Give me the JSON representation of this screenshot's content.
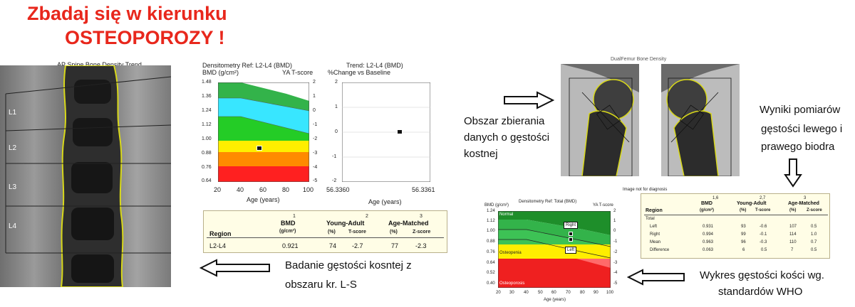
{
  "headline": {
    "line1": "Zbadaj się w kierunku",
    "line2": "OSTEOPOROZY !"
  },
  "spine_scan": {
    "title": "AP Spine Bone Density Trend",
    "labels": [
      "L1",
      "L2",
      "L3",
      "L4"
    ]
  },
  "spine_bmd_chart": {
    "title": "Densitometry Ref: L2-L4 (BMD)",
    "y_left_label": "BMD (g/cm²)",
    "y_right_label": "YA T-score",
    "x_label": "Age (years)",
    "y_ticks": [
      "1.48",
      "1.36",
      "1.24",
      "1.12",
      "1.00",
      "0.88",
      "0.76",
      "0.64"
    ],
    "t_ticks": [
      "2",
      "1",
      "0",
      "-1",
      "-2",
      "-3",
      "-4",
      "-5"
    ],
    "x_ticks": [
      "20",
      "40",
      "60",
      "80",
      "100"
    ]
  },
  "trend_chart": {
    "title": "Trend: L2-L4 (BMD)",
    "y_label": "%Change vs Baseline",
    "x_label": "Age (years)",
    "y_ticks": [
      "2",
      "1",
      "0",
      "-1",
      "-2"
    ],
    "x_ticks": [
      "56.3360",
      "56.3361"
    ]
  },
  "spine_table": {
    "col_numbers": [
      "1",
      "2",
      "3"
    ],
    "headers": {
      "region": "Region",
      "bmd": "BMD",
      "bmd_unit": "(g/cm²)",
      "young_adult": "Young-Adult",
      "age_matched": "Age-Matched",
      "pct": "(%)",
      "tscore": "T-score",
      "pct2": "(%)",
      "zscore": "Z-score"
    },
    "row": {
      "region": "L2-L4",
      "bmd": "0.921",
      "ya_pct": "74",
      "tscore": "-2.7",
      "am_pct": "77",
      "zscore": "-2.3"
    }
  },
  "captions": {
    "spine": [
      "Badanie gęstości kosntej z",
      "obszaru kr. L-S"
    ],
    "area": [
      "Obszar zbierania",
      "danych o gęstości",
      "kostnej"
    ],
    "hips": [
      "Wyniki pomiarów",
      "gęstości lewego i",
      "prawego biodra"
    ],
    "who": [
      "Wykres gęstości kości wg.",
      "standardów WHO"
    ]
  },
  "hip_scan": {
    "title": "DualFemur Bone Density"
  },
  "hip_chart": {
    "title": "Densitometry Ref: Total (BMD)",
    "y_left_label": "BMD (g/cm²)",
    "y_right_label": "YA T-score",
    "x_label": "Age (years)",
    "y_ticks": [
      "1.24",
      "1.12",
      "1.00",
      "0.88",
      "0.76",
      "0.64",
      "0.52",
      "0.40"
    ],
    "t_ticks": [
      "2",
      "1",
      "0",
      "-1",
      "-2",
      "-3",
      "-4",
      "-5"
    ],
    "x_ticks": [
      "20",
      "30",
      "40",
      "50",
      "60",
      "70",
      "80",
      "90",
      "100"
    ],
    "zones": [
      "Normal",
      "Osteopenia",
      "Osteoporosis"
    ],
    "markers": [
      "Right",
      "Left"
    ]
  },
  "hip_table": {
    "note": "Image not for diagnosis",
    "col_numbers": [
      "1,6",
      "2,7",
      "3"
    ],
    "headers": {
      "region": "Region",
      "bmd": "BMD",
      "bmd_unit": "(g/cm²)",
      "young_adult": "Young-Adult",
      "age_matched": "Age-Matched",
      "pct": "(%)",
      "tscore": "T-score",
      "pct2": "(%)",
      "zscore": "Z-score"
    },
    "section": "Total",
    "rows": [
      {
        "region": "Left",
        "bmd": "0.931",
        "ya_pct": "93",
        "tscore": "-0.6",
        "am_pct": "107",
        "zscore": "0.5"
      },
      {
        "region": "Right",
        "bmd": "0.994",
        "ya_pct": "99",
        "tscore": "-0.1",
        "am_pct": "114",
        "zscore": "1.0"
      },
      {
        "region": "Mean",
        "bmd": "0.963",
        "ya_pct": "96",
        "tscore": "-0.3",
        "am_pct": "110",
        "zscore": "0.7"
      },
      {
        "region": "Difference",
        "bmd": "0.063",
        "ya_pct": "6",
        "tscore": "0.5",
        "am_pct": "7",
        "zscore": "0.5"
      }
    ]
  }
}
